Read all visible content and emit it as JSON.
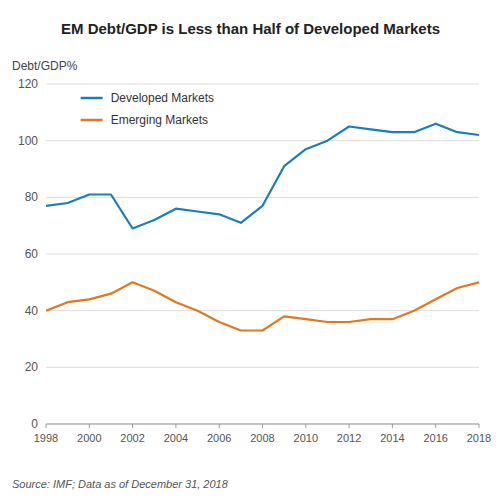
{
  "chart_data": {
    "type": "line",
    "title": "EM Debt/GDP is Less than Half of Developed Markets",
    "ylabel": "Debt/GDP%",
    "annotations": [
      "Source: IMF; Data as of December 31, 2018"
    ],
    "x": [
      1998,
      1999,
      2000,
      2001,
      2002,
      2003,
      2004,
      2005,
      2006,
      2007,
      2008,
      2009,
      2010,
      2011,
      2012,
      2013,
      2014,
      2015,
      2016,
      2017,
      2018
    ],
    "series": [
      {
        "name": "Developed Markets",
        "color": "#1b7eb5",
        "values": [
          77,
          78,
          81,
          81,
          69,
          72,
          76,
          75,
          74,
          71,
          77,
          91,
          97,
          100,
          105,
          104,
          103,
          103,
          106,
          103,
          102
        ]
      },
      {
        "name": "Emerging Markets",
        "color": "#e07820",
        "values": [
          40,
          43,
          44,
          46,
          50,
          47,
          43,
          40,
          36,
          33,
          33,
          38,
          37,
          36,
          36,
          37,
          37,
          40,
          44,
          48,
          50
        ]
      }
    ],
    "xlim": [
      1998,
      2018
    ],
    "xticks": [
      1998,
      2000,
      2002,
      2004,
      2006,
      2008,
      2010,
      2012,
      2014,
      2016,
      2018
    ],
    "ylim": [
      0,
      120
    ],
    "yticks": [
      0,
      20,
      40,
      60,
      80,
      100,
      120
    ],
    "grid": true,
    "legend": "upper left"
  }
}
